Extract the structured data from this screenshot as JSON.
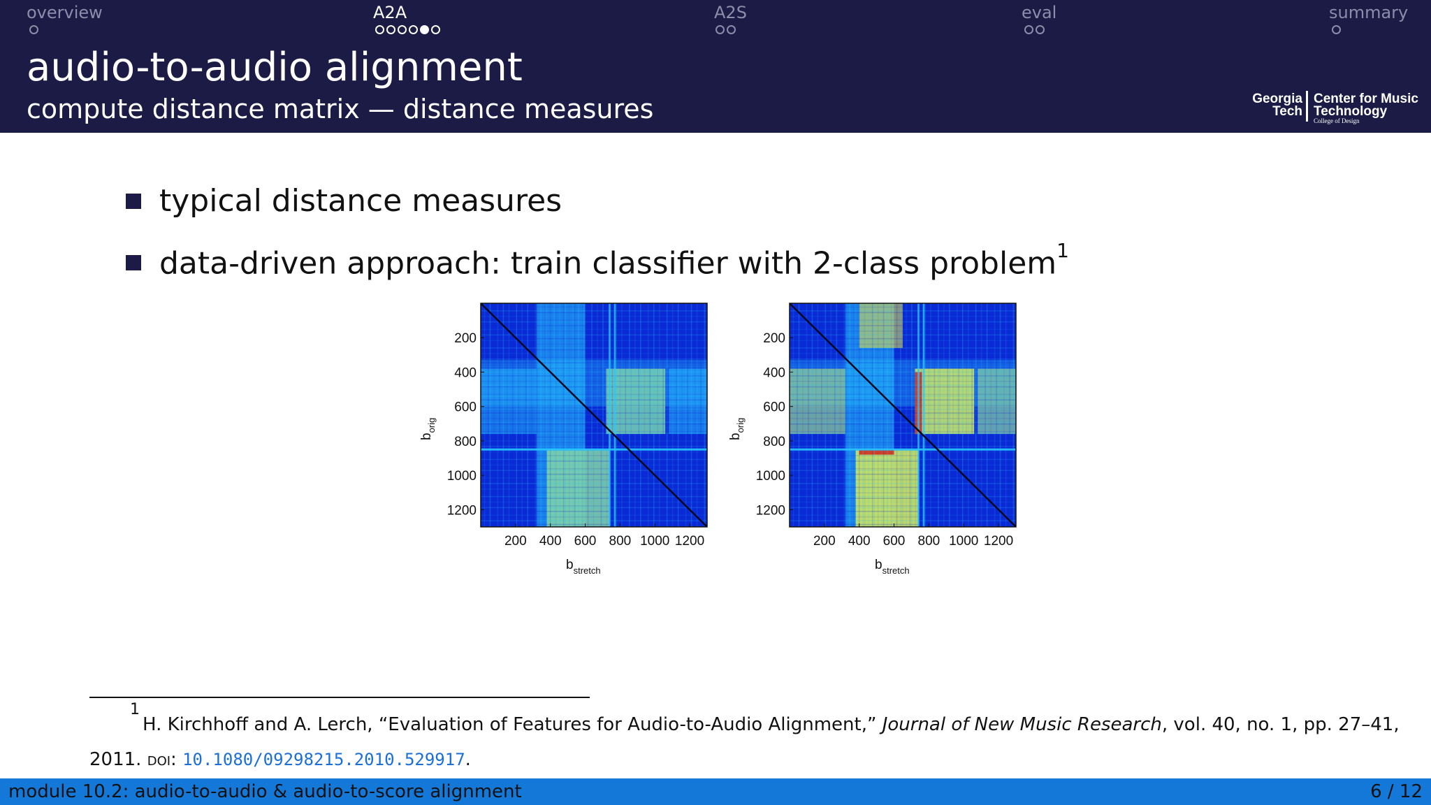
{
  "nav": {
    "sections": [
      {
        "label": "overview",
        "dots": 1,
        "filled_index": -1,
        "active": false
      },
      {
        "label": "A2A",
        "dots": 6,
        "filled_index": 4,
        "active": true
      },
      {
        "label": "A2S",
        "dots": 2,
        "filled_index": -1,
        "active": false
      },
      {
        "label": "eval",
        "dots": 2,
        "filled_index": -1,
        "active": false
      },
      {
        "label": "summary",
        "dots": 1,
        "filled_index": -1,
        "active": false
      }
    ]
  },
  "header": {
    "title": "audio-to-audio alignment",
    "subtitle": "compute distance matrix — distance measures"
  },
  "logo": {
    "line1": "Georgia",
    "line2": "Tech",
    "line3": "Center for Music",
    "line4": "Technology",
    "line5": "College of Design"
  },
  "bullets": [
    {
      "text": "typical distance measures",
      "sup": ""
    },
    {
      "text": "data-driven approach: train classifier with 2-class problem",
      "sup": "1"
    }
  ],
  "figures": {
    "y_ticks": [
      "200",
      "400",
      "600",
      "800",
      "1000",
      "1200"
    ],
    "x_ticks": [
      "200",
      "400",
      "600",
      "800",
      "1000",
      "1200"
    ],
    "ylabel_base": "b",
    "ylabel_sub": "orig",
    "xlabel_base": "b",
    "xlabel_sub": "stretch",
    "colors": {
      "low": "#0a2ad6",
      "mid": "#28c8ff",
      "high": "#f2e83a",
      "peak": "#d81e14"
    }
  },
  "footnote": {
    "mark": "1",
    "line1_prefix": "H. Kirchhoff and A. Lerch, “Evaluation of Features for Audio-to-Audio Alignment,”",
    "journal": "Journal of New Music Research",
    "line1_suffix": ", vol. 40, no. 1, pp. 27–41,",
    "year": "2011.",
    "doi_label": "doi:",
    "doi": "10.1080/09298215.2010.529917",
    "end": "."
  },
  "status": {
    "left": "module 10.2: audio-to-audio & audio-to-score alignment",
    "right": "6 / 12"
  }
}
